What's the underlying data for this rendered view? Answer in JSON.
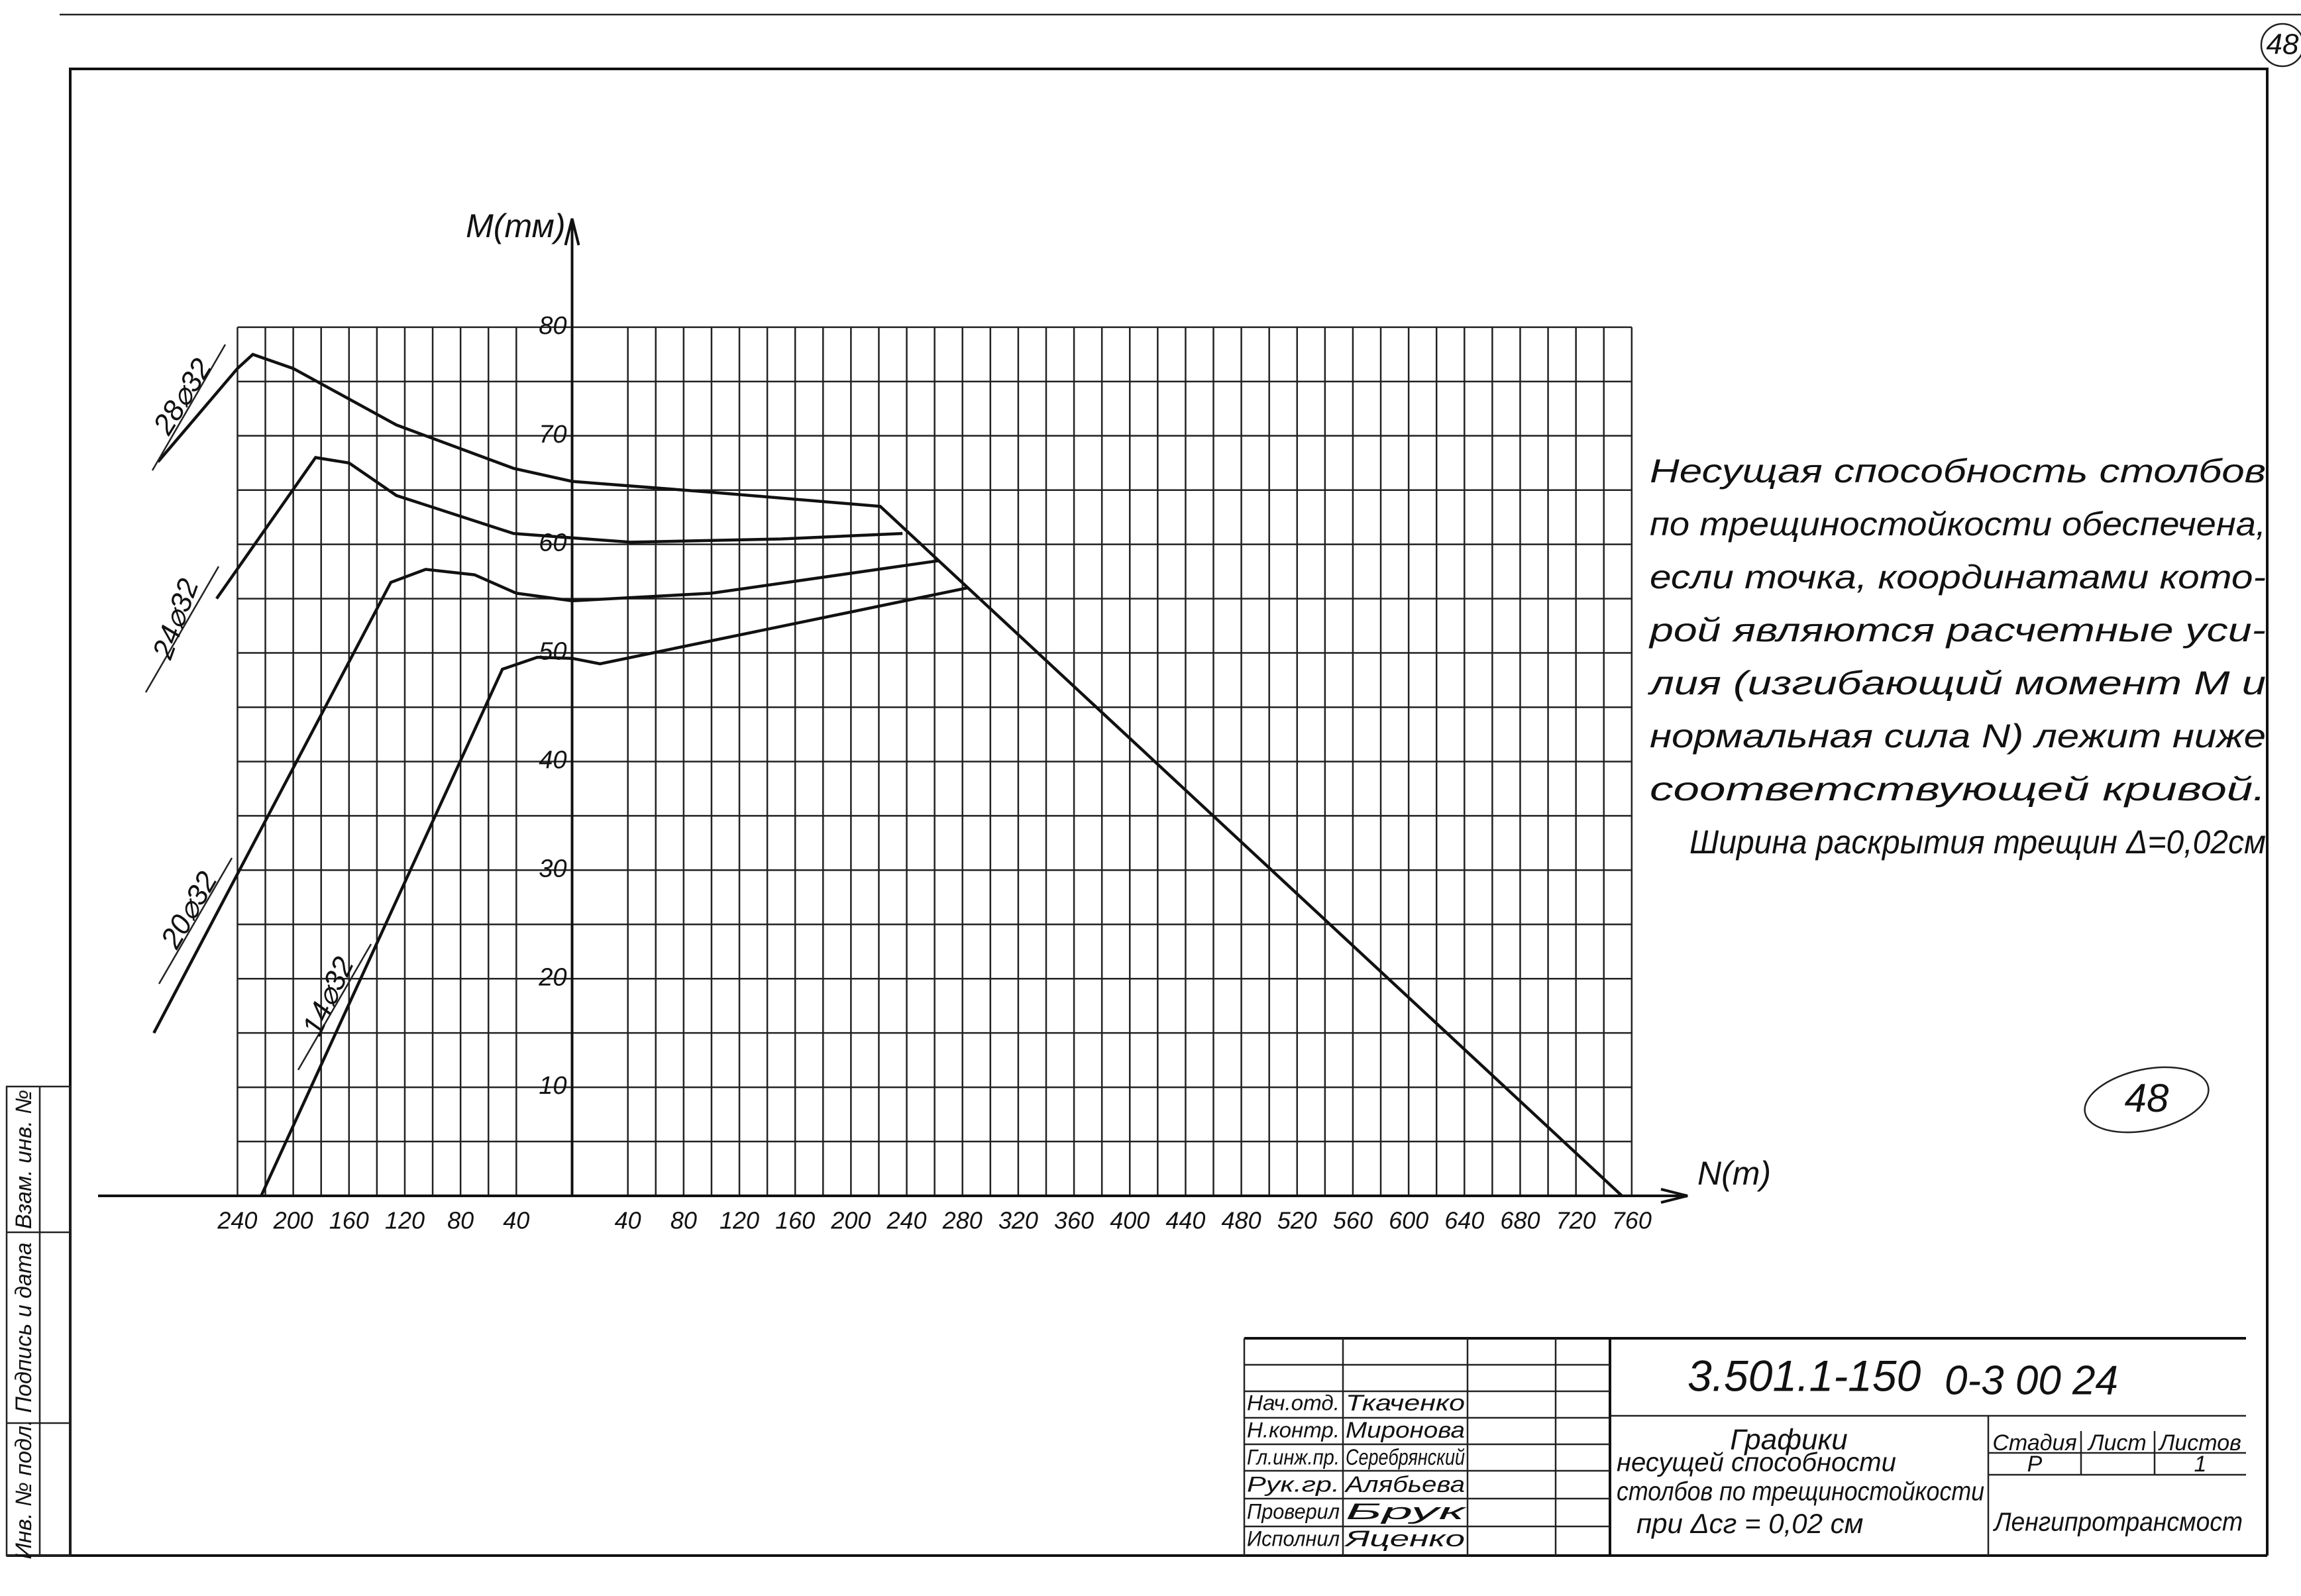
{
  "chart_data": {
    "type": "line",
    "y_label": "M(тм)",
    "x_label": "N(т)",
    "xlim": [
      -340,
      800
    ],
    "ylim": [
      0,
      90
    ],
    "xticks": [
      {
        "value": -240,
        "label": "240"
      },
      {
        "value": -200,
        "label": "200"
      },
      {
        "value": -160,
        "label": "160"
      },
      {
        "value": -120,
        "label": "120"
      },
      {
        "value": -80,
        "label": "80"
      },
      {
        "value": -40,
        "label": "40"
      },
      40,
      80,
      120,
      160,
      200,
      240,
      280,
      320,
      360,
      400,
      440,
      480,
      520,
      560,
      600,
      640,
      680,
      720,
      760
    ],
    "yticks": [
      10,
      20,
      30,
      40,
      50,
      60,
      70,
      80
    ],
    "grid": true,
    "series": [
      {
        "name": "28⌀32",
        "color": "#111111",
        "x": [
          -297,
          -240,
          -229,
          -200,
          -126,
          -42,
          0,
          100,
          221,
          753
        ],
        "values": [
          67.6,
          76.2,
          77.5,
          76.2,
          71,
          67,
          65.8,
          64.8,
          63.5,
          0
        ]
      },
      {
        "name": "24⌀32",
        "color": "#111111",
        "x": [
          -255,
          -184,
          -160,
          -126,
          -42,
          42,
          150,
          237
        ],
        "values": [
          55,
          68,
          67.5,
          64.5,
          61,
          60.2,
          60.5,
          61
        ]
      },
      {
        "name": "20⌀32",
        "color": "#111111",
        "x": [
          -300,
          -130,
          -105,
          -70,
          -40,
          0,
          100,
          263
        ],
        "values": [
          15,
          56.5,
          57.7,
          57.2,
          55.5,
          54.8,
          55.5,
          58.5
        ]
      },
      {
        "name": "14⌀32",
        "color": "#111111",
        "x": [
          -223,
          -50,
          -25,
          0,
          20,
          284
        ],
        "values": [
          0,
          48.5,
          49.6,
          49.5,
          49,
          56
        ]
      }
    ]
  },
  "notes": {
    "lines": [
      "Несущая способность столбов",
      "по трещиностойкости обеспечена,",
      "если точка, координатами кото-",
      "рой являются расчетные уси-",
      "лия (изгибающий момент M и",
      "нормальная сила N) лежит ниже",
      "соответствующей кривой.",
      "Ширина раскрытия трещин Δ=0,02см"
    ]
  },
  "page_number": "48",
  "stamp": "48",
  "margin": {
    "inventory": "Инв. № подл.",
    "signature": "Подпись и дата",
    "replaces": "Взам. инв. №"
  },
  "title_block": {
    "code": "3.501.1-150",
    "sheet_code": "0-3 00 24",
    "title": [
      "Графики",
      "несущей способности",
      "столбов по трещиностойкости",
      "при Δсг = 0,02 см"
    ],
    "stage_header": "Стадия",
    "sheet_header": "Лист",
    "sheets_header": "Листов",
    "stage": "Р",
    "sheets": "1",
    "organization": "Ленгипротрансмост",
    "roles": [
      "Нач.отд.",
      "Н.контр.",
      "Гл.инж.пр.",
      "Рук.гр.",
      "Проверил",
      "Исполнил"
    ],
    "names": [
      "Ткаченко",
      "Миронова",
      "Серебрянский",
      "Алябьева",
      "Брук",
      "Яценко"
    ]
  }
}
